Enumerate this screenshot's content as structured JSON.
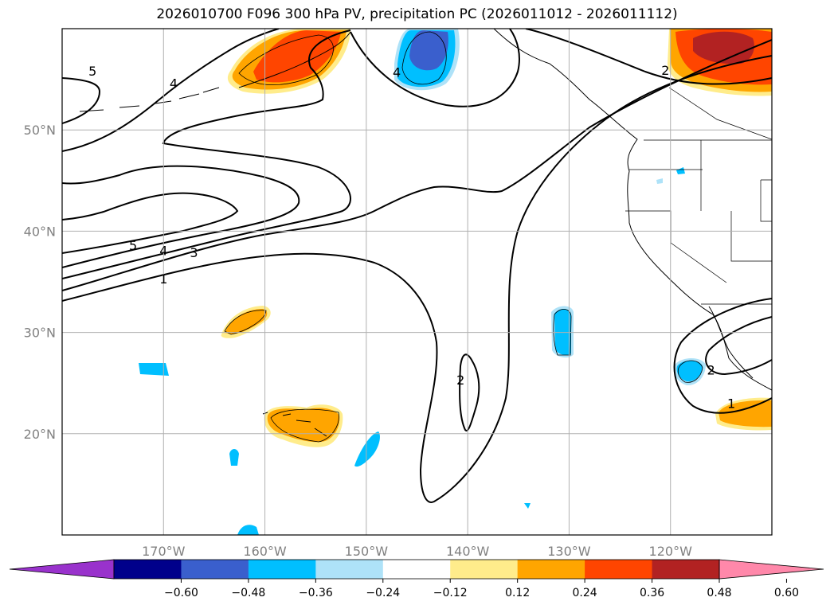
{
  "title": "2026010700 F096 300 hPa PV, precipitation PC (2026011012 - 2026011112)",
  "map": {
    "projection": "PlateCarree",
    "lon_range": [
      -180,
      -110
    ],
    "lat_range": [
      10,
      60
    ],
    "gridlines": true,
    "lon_ticks": [
      {
        "lon": -170,
        "label": "170°W"
      },
      {
        "lon": -160,
        "label": "160°W"
      },
      {
        "lon": -150,
        "label": "150°W"
      },
      {
        "lon": -140,
        "label": "140°W"
      },
      {
        "lon": -130,
        "label": "130°W"
      },
      {
        "lon": -120,
        "label": "120°W"
      }
    ],
    "lat_ticks": [
      {
        "lat": 50,
        "label": "50°N"
      },
      {
        "lat": 40,
        "label": "40°N"
      },
      {
        "lat": 30,
        "label": "30°N"
      },
      {
        "lat": 20,
        "label": "20°N"
      }
    ],
    "contour_labels": [
      {
        "text": "5",
        "lon": -177,
        "lat": 55.5
      },
      {
        "text": "4",
        "lon": -169,
        "lat": 54.3
      },
      {
        "text": "4",
        "lon": -147,
        "lat": 55.4
      },
      {
        "text": "2",
        "lon": -120.5,
        "lat": 55.6
      },
      {
        "text": "5",
        "lon": -173,
        "lat": 38.3
      },
      {
        "text": "4",
        "lon": -170,
        "lat": 37.8
      },
      {
        "text": "3",
        "lon": -167,
        "lat": 37.6
      },
      {
        "text": "1",
        "lon": -170,
        "lat": 35.0
      },
      {
        "text": "2",
        "lon": -140.7,
        "lat": 25.0
      },
      {
        "text": "2",
        "lon": -116,
        "lat": 26.0
      },
      {
        "text": "1",
        "lon": -114,
        "lat": 22.7
      }
    ]
  },
  "colorbar": {
    "colors": [
      "#9932cc",
      "#00008b",
      "#3a5fcd",
      "#00bfff",
      "#aee2f8",
      "#ffffff",
      "#ffec8b",
      "#ffa500",
      "#ff4500",
      "#b22222",
      "#ff88aa"
    ],
    "tick_labels": [
      "−0.60",
      "−0.48",
      "−0.36",
      "−0.24",
      "−0.12",
      "0.12",
      "0.24",
      "0.36",
      "0.48",
      "0.60"
    ]
  },
  "legend_colors": {
    "light_orange": "#ffec8b",
    "orange": "#ffa500",
    "red_orange": "#ff4500",
    "dark_red": "#b22222",
    "light_blue": "#aee2f8",
    "blue": "#00bfff",
    "royal_blue": "#3a5fcd"
  }
}
